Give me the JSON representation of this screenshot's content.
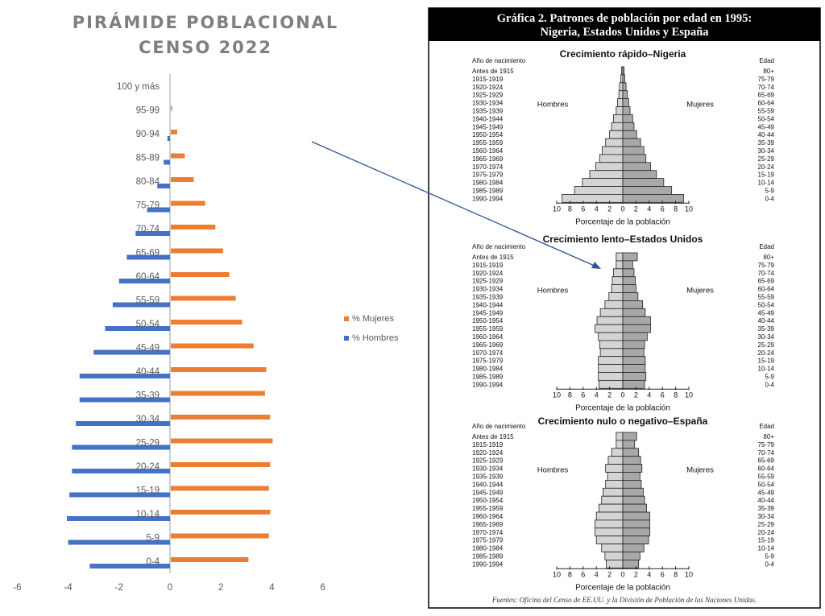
{
  "chart_data": [
    {
      "type": "bar",
      "orientation": "horizontal",
      "title": "PIRÁMIDE POBLACIONAL\nCENSO 2022",
      "title_lines": [
        "PIRÁMIDE POBLACIONAL",
        "CENSO 2022"
      ],
      "categories": [
        "100 y más",
        "95-99",
        "90-94",
        "85-89",
        "80-84",
        "75-79",
        "70-74",
        "65-69",
        "60-64",
        "55-59",
        "50-54",
        "45-49",
        "40-44",
        "35-39",
        "30-34",
        "25-29",
        "20-24",
        "15-19",
        "10-14",
        "5-9",
        "0-4"
      ],
      "series": [
        {
          "name": "% Mujeres",
          "color": "#ed7d31",
          "values": [
            0,
            0.05,
            0.25,
            0.55,
            0.9,
            1.35,
            1.75,
            2.05,
            2.3,
            2.55,
            2.8,
            3.25,
            3.75,
            3.7,
            3.9,
            4.0,
            3.9,
            3.85,
            3.9,
            3.85,
            3.05
          ]
        },
        {
          "name": "% Hombres",
          "color": "#4472c4",
          "values": [
            0,
            0,
            -0.1,
            -0.25,
            -0.5,
            -0.9,
            -1.35,
            -1.7,
            -2.0,
            -2.25,
            -2.55,
            -3.0,
            -3.55,
            -3.55,
            -3.7,
            -3.85,
            -3.85,
            -3.95,
            -4.05,
            -4.0,
            -3.15
          ]
        }
      ],
      "xlim": [
        -6,
        6
      ],
      "xticks": [
        "-6",
        "-4",
        "-2",
        "0",
        "2",
        "4",
        "6"
      ],
      "grid": false,
      "legend": "right"
    },
    {
      "type": "bar",
      "orientation": "horizontal",
      "title": "Crecimiento rápido–Nigeria",
      "xlabel": "Porcentaje de la población",
      "xlim": [
        -10,
        10
      ],
      "series": [
        {
          "name": "Hombres",
          "values": [
            0.2,
            0.3,
            0.5,
            0.6,
            0.8,
            1.0,
            1.4,
            1.7,
            2.0,
            2.6,
            3.1,
            3.5,
            4.1,
            5.0,
            6.1,
            7.3,
            9.2
          ]
        },
        {
          "name": "Mujeres",
          "values": [
            0.2,
            0.3,
            0.5,
            0.7,
            0.9,
            1.1,
            1.5,
            1.7,
            2.1,
            2.7,
            3.2,
            3.5,
            4.2,
            5.1,
            6.2,
            7.4,
            9.2
          ]
        }
      ]
    },
    {
      "type": "bar",
      "orientation": "horizontal",
      "title": "Crecimiento lento–Estados Unidos",
      "xlabel": "Porcentaje de la población",
      "xlim": [
        -10,
        10
      ],
      "series": [
        {
          "name": "Hombres",
          "values": [
            1.0,
            1.0,
            1.4,
            1.6,
            1.7,
            2.1,
            2.7,
            3.4,
            3.9,
            4.2,
            3.7,
            3.5,
            3.4,
            3.7,
            3.7,
            3.7,
            3.6
          ]
        },
        {
          "name": "Mujeres",
          "values": [
            2.2,
            1.5,
            1.7,
            1.9,
            2.0,
            2.3,
            3.0,
            3.4,
            4.2,
            4.2,
            3.7,
            3.3,
            3.2,
            3.4,
            3.4,
            3.5,
            3.3
          ]
        }
      ]
    },
    {
      "type": "bar",
      "orientation": "horizontal",
      "title": "Crecimiento nulo o negativo–España",
      "xlabel": "Porcentaje de la población",
      "xlim": [
        -10,
        10
      ],
      "series": [
        {
          "name": "Hombres",
          "values": [
            1.0,
            1.0,
            1.7,
            2.2,
            2.6,
            2.3,
            2.6,
            3.0,
            3.2,
            3.6,
            4.0,
            4.2,
            4.2,
            4.0,
            3.2,
            2.7,
            2.5
          ]
        },
        {
          "name": "Mujeres",
          "values": [
            2.1,
            1.8,
            2.4,
            2.7,
            2.9,
            2.6,
            2.8,
            3.1,
            3.3,
            3.6,
            4.1,
            4.1,
            4.1,
            3.9,
            3.2,
            2.6,
            2.4
          ]
        }
      ]
    }
  ],
  "figure": {
    "header": [
      "Gráfica 2. Patrones de población por edad en 1995:",
      "Nigeria, Estados Unidos y España"
    ],
    "birth_label": "Año de nacimiento",
    "age_label": "Edad",
    "men_label": "Hombres",
    "women_label": "Mujeres",
    "birth_years": [
      "Antes de 1915",
      "1915-1919",
      "1920-1924",
      "1925-1929",
      "1930-1934",
      "1935-1939",
      "1940-1944",
      "1945-1949",
      "1950-1954",
      "1955-1959",
      "1960-1964",
      "1965-1969",
      "1970-1974",
      "1975-1979",
      "1980-1984",
      "1985-1989",
      "1990-1994"
    ],
    "ages": [
      "80+",
      "75-79",
      "70-74",
      "65-69",
      "60-64",
      "55-59",
      "50-54",
      "45-49",
      "40-44",
      "35-39",
      "30-34",
      "25-29",
      "20-24",
      "15-19",
      "10-14",
      "5-9",
      "0-4"
    ],
    "ticks": [
      "10",
      "8",
      "6",
      "4",
      "2",
      "0",
      "2",
      "4",
      "6",
      "8",
      "10"
    ],
    "source": "Fuentes: Oficina del Censo de EE.UU. y la División de Población de las Naciones Unidas."
  },
  "colors": {
    "men_fill": "#d4d4d4",
    "women_fill": "#a8a8a8",
    "arrow": "#2f5597",
    "header_bg": "#000000"
  }
}
